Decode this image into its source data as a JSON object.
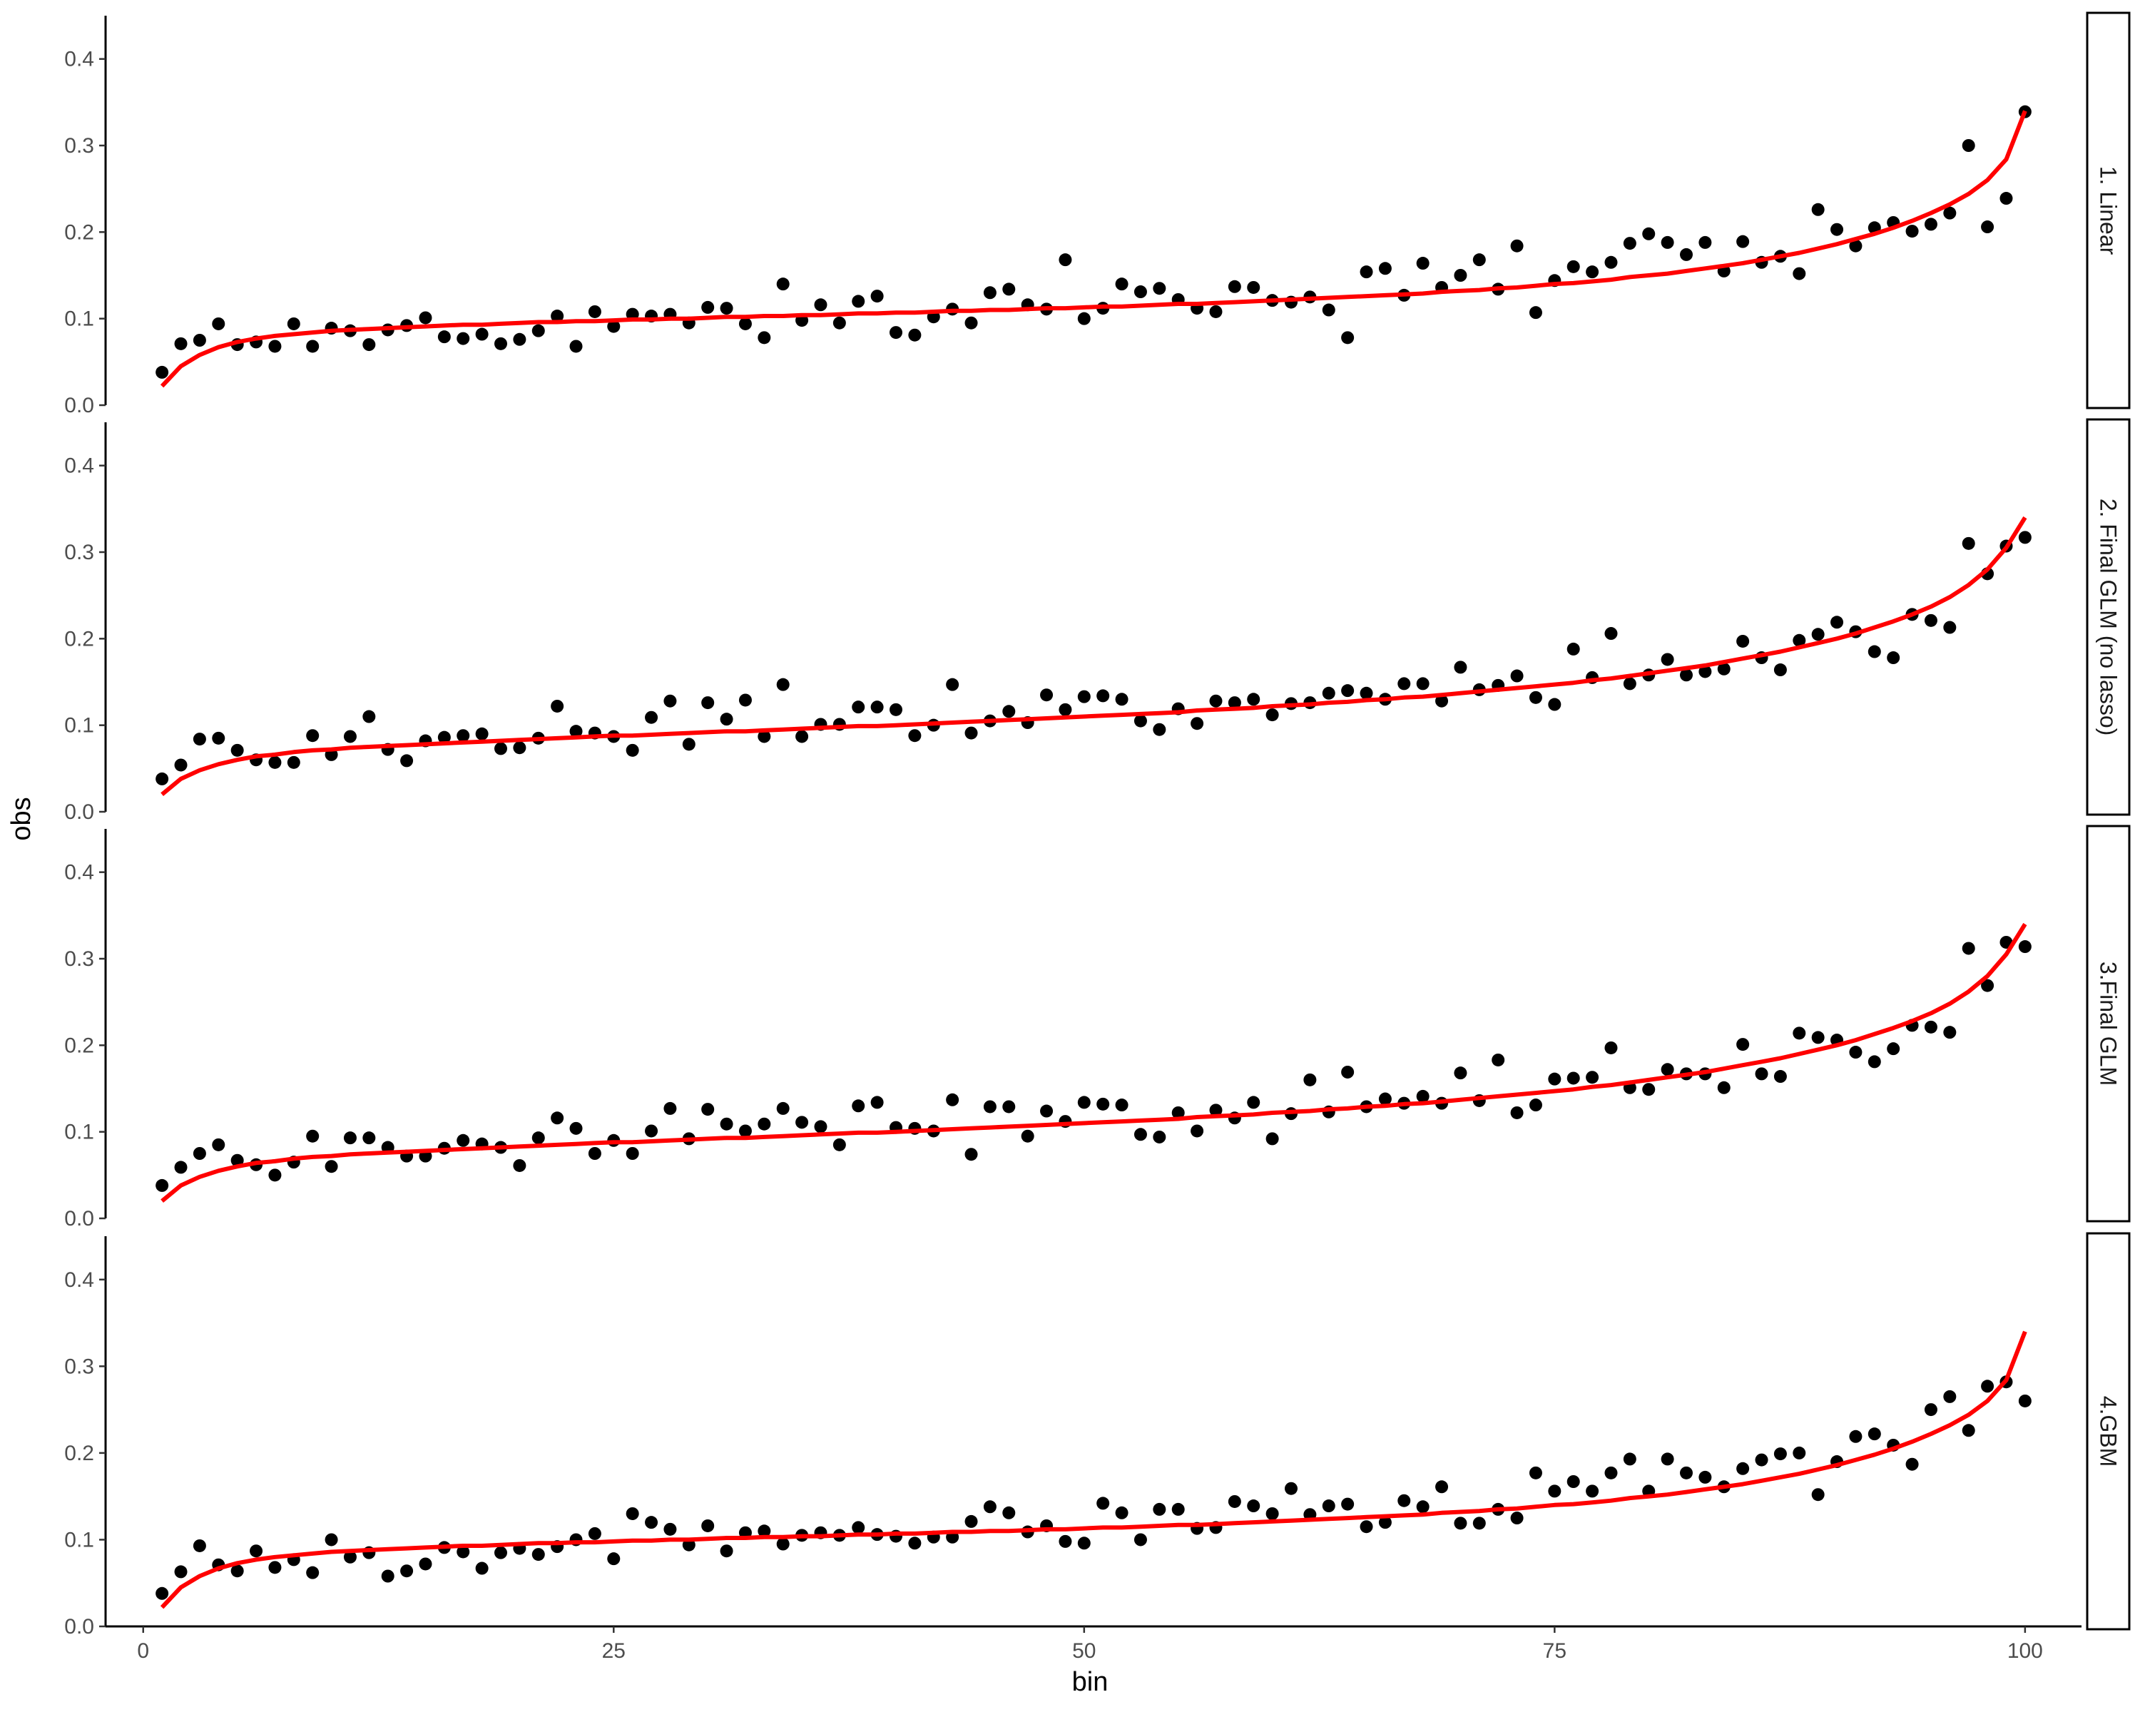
{
  "chart_data": {
    "type": "scatter",
    "layout": "faceted rows (facet_grid), shared x axis",
    "xlabel": "bin",
    "ylabel": "obs",
    "xlim": [
      -2,
      103
    ],
    "ylim": [
      0,
      0.45
    ],
    "x_ticks": [
      0,
      25,
      50,
      75,
      100
    ],
    "y_ticks": [
      0.0,
      0.1,
      0.2,
      0.3,
      0.4
    ],
    "x_tick_labels": [
      "0",
      "25",
      "50",
      "75",
      "100"
    ],
    "y_tick_labels": [
      "0.0",
      "0.1",
      "0.2",
      "0.3",
      "0.4"
    ],
    "grid": false,
    "colors": {
      "points": "#000000",
      "line": "#ff0000"
    },
    "x": [
      1,
      2,
      3,
      4,
      5,
      6,
      7,
      8,
      9,
      10,
      11,
      12,
      13,
      14,
      15,
      16,
      17,
      18,
      19,
      20,
      21,
      22,
      23,
      24,
      25,
      26,
      27,
      28,
      29,
      30,
      31,
      32,
      33,
      34,
      35,
      36,
      37,
      38,
      39,
      40,
      41,
      42,
      43,
      44,
      45,
      46,
      47,
      48,
      49,
      50,
      51,
      52,
      53,
      54,
      55,
      56,
      57,
      58,
      59,
      60,
      61,
      62,
      63,
      64,
      65,
      66,
      67,
      68,
      69,
      70,
      71,
      72,
      73,
      74,
      75,
      76,
      77,
      78,
      79,
      80,
      81,
      82,
      83,
      84,
      85,
      86,
      87,
      88,
      89,
      90,
      91,
      92,
      93,
      94,
      95,
      96,
      97,
      98,
      99,
      100
    ],
    "panels": [
      {
        "label": "1. Linear",
        "obs": [
          0.038,
          0.071,
          0.075,
          0.094,
          0.07,
          0.073,
          0.068,
          0.094,
          0.068,
          0.089,
          0.086,
          0.07,
          0.087,
          0.092,
          0.101,
          0.079,
          0.077,
          0.082,
          0.071,
          0.076,
          0.086,
          0.103,
          0.068,
          0.108,
          0.091,
          0.105,
          0.103,
          0.105,
          0.095,
          0.113,
          0.112,
          0.094,
          0.078,
          0.14,
          0.098,
          0.116,
          0.095,
          0.12,
          0.126,
          0.084,
          0.081,
          0.102,
          0.111,
          0.095,
          0.13,
          0.134,
          0.116,
          0.111,
          0.168,
          0.1,
          0.112,
          0.14,
          0.131,
          0.135,
          0.122,
          0.112,
          0.108,
          0.137,
          0.136,
          0.121,
          0.119,
          0.125,
          0.11,
          0.078,
          0.154,
          0.158,
          0.127,
          0.164,
          0.136,
          0.15,
          0.168,
          0.134,
          0.184,
          0.107,
          0.144,
          0.16,
          0.154,
          0.165,
          0.187,
          0.198,
          0.188,
          0.174,
          0.188,
          0.155,
          0.189,
          0.165,
          0.172,
          0.152,
          0.226,
          0.203,
          0.184,
          0.205,
          0.211,
          0.201,
          0.209,
          0.222,
          0.3,
          0.206,
          0.239,
          0.339
        ],
        "fit": [
          0.022,
          0.045,
          0.058,
          0.067,
          0.073,
          0.077,
          0.08,
          0.082,
          0.084,
          0.086,
          0.087,
          0.088,
          0.089,
          0.09,
          0.091,
          0.092,
          0.093,
          0.093,
          0.094,
          0.095,
          0.096,
          0.096,
          0.097,
          0.097,
          0.098,
          0.099,
          0.099,
          0.1,
          0.1,
          0.101,
          0.102,
          0.102,
          0.103,
          0.103,
          0.104,
          0.104,
          0.105,
          0.106,
          0.106,
          0.107,
          0.107,
          0.108,
          0.109,
          0.109,
          0.11,
          0.11,
          0.111,
          0.112,
          0.112,
          0.113,
          0.114,
          0.114,
          0.115,
          0.116,
          0.117,
          0.117,
          0.118,
          0.119,
          0.12,
          0.121,
          0.122,
          0.123,
          0.124,
          0.125,
          0.126,
          0.127,
          0.128,
          0.129,
          0.131,
          0.132,
          0.133,
          0.135,
          0.136,
          0.138,
          0.14,
          0.141,
          0.143,
          0.145,
          0.148,
          0.15,
          0.152,
          0.155,
          0.158,
          0.161,
          0.164,
          0.168,
          0.172,
          0.176,
          0.181,
          0.186,
          0.192,
          0.198,
          0.205,
          0.213,
          0.222,
          0.232,
          0.244,
          0.26,
          0.284,
          0.34
        ]
      },
      {
        "label": "2. Final GLM (no lasso)",
        "obs": [
          0.038,
          0.054,
          0.084,
          0.085,
          0.071,
          0.06,
          0.057,
          0.057,
          0.088,
          0.066,
          0.087,
          0.11,
          0.072,
          0.059,
          0.082,
          0.086,
          0.088,
          0.09,
          0.073,
          0.074,
          0.085,
          0.122,
          0.093,
          0.091,
          0.087,
          0.071,
          0.109,
          0.128,
          0.078,
          0.126,
          0.107,
          0.129,
          0.087,
          0.147,
          0.087,
          0.101,
          0.101,
          0.121,
          0.121,
          0.118,
          0.088,
          0.1,
          0.147,
          0.091,
          0.105,
          0.116,
          0.103,
          0.135,
          0.118,
          0.133,
          0.134,
          0.13,
          0.105,
          0.095,
          0.119,
          0.102,
          0.128,
          0.126,
          0.13,
          0.112,
          0.125,
          0.126,
          0.137,
          0.14,
          0.137,
          0.13,
          0.148,
          0.148,
          0.128,
          0.167,
          0.141,
          0.146,
          0.157,
          0.132,
          0.124,
          0.188,
          0.155,
          0.206,
          0.148,
          0.158,
          0.176,
          0.158,
          0.162,
          0.165,
          0.197,
          0.178,
          0.164,
          0.198,
          0.205,
          0.219,
          0.208,
          0.185,
          0.178,
          0.228,
          0.221,
          0.213,
          0.31,
          0.275,
          0.307,
          0.317
        ],
        "fit": [
          0.02,
          0.038,
          0.048,
          0.055,
          0.06,
          0.064,
          0.066,
          0.069,
          0.071,
          0.072,
          0.074,
          0.075,
          0.076,
          0.077,
          0.078,
          0.079,
          0.08,
          0.081,
          0.082,
          0.083,
          0.084,
          0.085,
          0.086,
          0.087,
          0.088,
          0.088,
          0.089,
          0.09,
          0.091,
          0.092,
          0.093,
          0.093,
          0.094,
          0.095,
          0.096,
          0.097,
          0.098,
          0.099,
          0.099,
          0.1,
          0.101,
          0.102,
          0.103,
          0.104,
          0.105,
          0.106,
          0.107,
          0.108,
          0.109,
          0.11,
          0.111,
          0.112,
          0.113,
          0.114,
          0.115,
          0.117,
          0.118,
          0.119,
          0.12,
          0.122,
          0.123,
          0.124,
          0.126,
          0.127,
          0.129,
          0.13,
          0.132,
          0.133,
          0.135,
          0.137,
          0.139,
          0.141,
          0.143,
          0.145,
          0.147,
          0.149,
          0.152,
          0.154,
          0.157,
          0.16,
          0.163,
          0.166,
          0.169,
          0.173,
          0.177,
          0.181,
          0.185,
          0.19,
          0.195,
          0.2,
          0.206,
          0.213,
          0.22,
          0.228,
          0.237,
          0.248,
          0.262,
          0.28,
          0.305,
          0.34
        ]
      },
      {
        "label": "3.Final GLM",
        "obs": [
          0.038,
          0.059,
          0.075,
          0.085,
          0.067,
          0.062,
          0.05,
          0.065,
          0.095,
          0.06,
          0.093,
          0.093,
          0.082,
          0.072,
          0.072,
          0.081,
          0.09,
          0.086,
          0.082,
          0.061,
          0.093,
          0.116,
          0.104,
          0.075,
          0.09,
          0.075,
          0.101,
          0.127,
          0.092,
          0.126,
          0.109,
          0.101,
          0.109,
          0.127,
          0.111,
          0.106,
          0.085,
          0.13,
          0.134,
          0.105,
          0.104,
          0.101,
          0.137,
          0.074,
          0.129,
          0.129,
          0.095,
          0.124,
          0.112,
          0.134,
          0.132,
          0.131,
          0.097,
          0.094,
          0.122,
          0.101,
          0.125,
          0.116,
          0.134,
          0.092,
          0.121,
          0.16,
          0.123,
          0.169,
          0.129,
          0.138,
          0.133,
          0.141,
          0.133,
          0.168,
          0.136,
          0.183,
          0.122,
          0.131,
          0.161,
          0.162,
          0.163,
          0.197,
          0.151,
          0.149,
          0.172,
          0.167,
          0.167,
          0.151,
          0.201,
          0.167,
          0.164,
          0.214,
          0.209,
          0.206,
          0.192,
          0.181,
          0.196,
          0.223,
          0.221,
          0.215,
          0.312,
          0.269,
          0.319,
          0.314
        ],
        "fit": [
          0.02,
          0.038,
          0.048,
          0.055,
          0.06,
          0.064,
          0.066,
          0.069,
          0.071,
          0.072,
          0.074,
          0.075,
          0.076,
          0.077,
          0.078,
          0.079,
          0.08,
          0.081,
          0.082,
          0.083,
          0.084,
          0.085,
          0.086,
          0.087,
          0.088,
          0.088,
          0.089,
          0.09,
          0.091,
          0.092,
          0.093,
          0.093,
          0.094,
          0.095,
          0.096,
          0.097,
          0.098,
          0.099,
          0.099,
          0.1,
          0.101,
          0.102,
          0.103,
          0.104,
          0.105,
          0.106,
          0.107,
          0.108,
          0.109,
          0.11,
          0.111,
          0.112,
          0.113,
          0.114,
          0.115,
          0.117,
          0.118,
          0.119,
          0.12,
          0.122,
          0.123,
          0.124,
          0.126,
          0.127,
          0.129,
          0.13,
          0.132,
          0.133,
          0.135,
          0.137,
          0.139,
          0.141,
          0.143,
          0.145,
          0.147,
          0.149,
          0.152,
          0.154,
          0.157,
          0.16,
          0.163,
          0.166,
          0.169,
          0.173,
          0.177,
          0.181,
          0.185,
          0.19,
          0.195,
          0.2,
          0.206,
          0.213,
          0.22,
          0.228,
          0.237,
          0.248,
          0.262,
          0.28,
          0.305,
          0.34
        ]
      },
      {
        "label": "4.GBM",
        "obs": [
          0.038,
          0.063,
          0.093,
          0.071,
          0.064,
          0.087,
          0.068,
          0.077,
          0.062,
          0.1,
          0.08,
          0.085,
          0.058,
          0.064,
          0.072,
          0.091,
          0.086,
          0.067,
          0.085,
          0.09,
          0.083,
          0.092,
          0.1,
          0.107,
          0.078,
          0.13,
          0.12,
          0.112,
          0.094,
          0.116,
          0.087,
          0.108,
          0.11,
          0.095,
          0.105,
          0.108,
          0.105,
          0.114,
          0.106,
          0.104,
          0.096,
          0.103,
          0.103,
          0.121,
          0.138,
          0.131,
          0.109,
          0.116,
          0.098,
          0.096,
          0.142,
          0.131,
          0.1,
          0.135,
          0.135,
          0.113,
          0.114,
          0.144,
          0.139,
          0.13,
          0.159,
          0.129,
          0.139,
          0.141,
          0.115,
          0.12,
          0.145,
          0.138,
          0.161,
          0.119,
          0.119,
          0.135,
          0.125,
          0.177,
          0.156,
          0.167,
          0.156,
          0.177,
          0.193,
          0.156,
          0.193,
          0.177,
          0.172,
          0.161,
          0.182,
          0.192,
          0.199,
          0.2,
          0.152,
          0.19,
          0.219,
          0.222,
          0.209,
          0.187,
          0.25,
          0.265,
          0.226,
          0.277,
          0.282,
          0.26
        ],
        "fit": [
          0.022,
          0.045,
          0.058,
          0.067,
          0.073,
          0.077,
          0.08,
          0.082,
          0.084,
          0.086,
          0.087,
          0.088,
          0.089,
          0.09,
          0.091,
          0.092,
          0.093,
          0.093,
          0.094,
          0.095,
          0.096,
          0.096,
          0.097,
          0.097,
          0.098,
          0.099,
          0.099,
          0.1,
          0.1,
          0.101,
          0.102,
          0.102,
          0.103,
          0.103,
          0.104,
          0.104,
          0.105,
          0.106,
          0.106,
          0.107,
          0.107,
          0.108,
          0.109,
          0.109,
          0.11,
          0.11,
          0.111,
          0.112,
          0.112,
          0.113,
          0.114,
          0.114,
          0.115,
          0.116,
          0.117,
          0.117,
          0.118,
          0.119,
          0.12,
          0.121,
          0.122,
          0.123,
          0.124,
          0.125,
          0.126,
          0.127,
          0.128,
          0.129,
          0.131,
          0.132,
          0.133,
          0.135,
          0.136,
          0.138,
          0.14,
          0.141,
          0.143,
          0.145,
          0.148,
          0.15,
          0.152,
          0.155,
          0.158,
          0.161,
          0.164,
          0.168,
          0.172,
          0.176,
          0.181,
          0.186,
          0.192,
          0.198,
          0.205,
          0.213,
          0.222,
          0.232,
          0.244,
          0.26,
          0.284,
          0.34
        ]
      }
    ]
  }
}
